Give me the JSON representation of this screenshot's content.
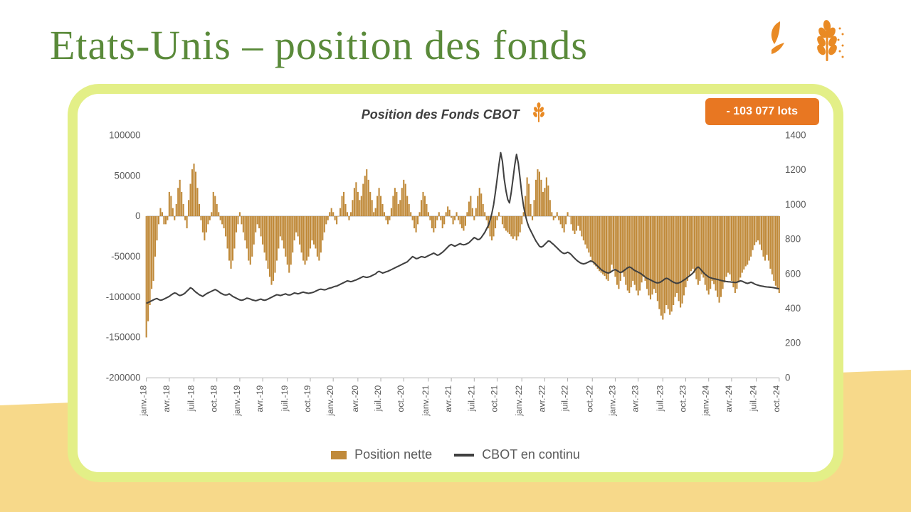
{
  "page": {
    "title": "Etats-Unis – position des fonds",
    "title_color": "#5a8a3a",
    "title_font": "Brush Script MT",
    "title_fontsize": 58,
    "bg_stripe_color": "#f7d98a",
    "card_border_color": "#e3ef87",
    "card_border_radius": 44,
    "card_border_width": 14,
    "icon_color": "#e98a24"
  },
  "chart": {
    "title": "Position des Fonds CBOT",
    "title_fontsize": 18,
    "title_color": "#404040",
    "title_italic": true,
    "title_weight": "bold",
    "badge": {
      "text": "- 103 077 lots",
      "bg": "#e87722",
      "fg": "#ffffff",
      "fontsize": 16,
      "radius": 6
    },
    "background_color": "#ffffff",
    "bar_color": "#c08a3a",
    "line_color": "#404040",
    "line_width": 2,
    "axis": {
      "left": {
        "min": -200000,
        "max": 100000,
        "step": 50000,
        "fontsize": 13,
        "color": "#5a5a5a"
      },
      "right": {
        "min": 0,
        "max": 1400,
        "step": 200,
        "fontsize": 13,
        "color": "#5a5a5a"
      },
      "x_labels": [
        "janv.-18",
        "avr.-18",
        "juil.-18",
        "oct.-18",
        "janv.-19",
        "avr.-19",
        "juil.-19",
        "oct.-19",
        "janv.-20",
        "avr.-20",
        "juil.-20",
        "oct.-20",
        "janv.-21",
        "avr.-21",
        "juil.-21",
        "oct.-21",
        "janv.-22",
        "avr.-22",
        "juil.-22",
        "oct.-22",
        "janv.-23",
        "avr.-23",
        "juil.-23",
        "oct.-23",
        "janv.-24",
        "avr.-24",
        "juil.-24",
        "oct.-24"
      ],
      "x_label_fontsize": 12,
      "x_label_color": "#5a5a5a",
      "x_label_rotate": -90
    },
    "legend": {
      "items": [
        {
          "label": "Position nette",
          "type": "bar",
          "color": "#c08a3a"
        },
        {
          "label": "CBOT en continu",
          "type": "line",
          "color": "#404040"
        }
      ],
      "fontsize": 18,
      "color": "#5a5a5a"
    },
    "data": {
      "n_points": 360,
      "position_nette": [
        -150000,
        -130000,
        -110000,
        -90000,
        -80000,
        -50000,
        -30000,
        -10000,
        10000,
        5000,
        -10000,
        -10000,
        -5000,
        30000,
        25000,
        10000,
        -5000,
        15000,
        35000,
        45000,
        30000,
        15000,
        -5000,
        -15000,
        20000,
        40000,
        58000,
        65000,
        55000,
        35000,
        15000,
        -5000,
        -20000,
        -30000,
        -20000,
        -10000,
        -5000,
        5000,
        30000,
        25000,
        15000,
        5000,
        -5000,
        -10000,
        -15000,
        -25000,
        -40000,
        -55000,
        -65000,
        -55000,
        -40000,
        -20000,
        -10000,
        5000,
        -10000,
        -20000,
        -30000,
        -40000,
        -55000,
        -60000,
        -50000,
        -35000,
        -20000,
        -10000,
        -15000,
        -25000,
        -35000,
        -45000,
        -55000,
        -65000,
        -75000,
        -85000,
        -80000,
        -70000,
        -55000,
        -40000,
        -25000,
        -30000,
        -40000,
        -50000,
        -60000,
        -70000,
        -60000,
        -45000,
        -30000,
        -20000,
        -25000,
        -35000,
        -45000,
        -55000,
        -60000,
        -55000,
        -50000,
        -40000,
        -30000,
        -35000,
        -40000,
        -50000,
        -55000,
        -45000,
        -30000,
        -20000,
        -10000,
        -5000,
        5000,
        10000,
        5000,
        -5000,
        -10000,
        0,
        10000,
        25000,
        30000,
        15000,
        5000,
        -5000,
        5000,
        20000,
        35000,
        42000,
        30000,
        20000,
        25000,
        40000,
        50000,
        58000,
        45000,
        30000,
        20000,
        5000,
        10000,
        25000,
        35000,
        25000,
        15000,
        5000,
        -5000,
        -10000,
        -5000,
        10000,
        25000,
        35000,
        30000,
        15000,
        20000,
        35000,
        45000,
        40000,
        25000,
        15000,
        5000,
        -5000,
        -15000,
        -20000,
        -10000,
        5000,
        20000,
        30000,
        25000,
        15000,
        5000,
        -5000,
        -15000,
        -20000,
        -15000,
        -5000,
        5000,
        -5000,
        -15000,
        -10000,
        5000,
        12000,
        8000,
        -2000,
        -10000,
        -5000,
        5000,
        -5000,
        -10000,
        -15000,
        -18000,
        -12000,
        5000,
        18000,
        25000,
        10000,
        -5000,
        10000,
        25000,
        35000,
        28000,
        15000,
        5000,
        -5000,
        -15000,
        -25000,
        -30000,
        -25000,
        -15000,
        -5000,
        5000,
        0,
        -10000,
        -15000,
        -18000,
        -20000,
        -22000,
        -25000,
        -28000,
        -25000,
        -30000,
        -25000,
        -20000,
        -10000,
        5000,
        25000,
        48000,
        40000,
        15000,
        -5000,
        20000,
        45000,
        58000,
        55000,
        45000,
        30000,
        35000,
        48000,
        38000,
        20000,
        5000,
        -5000,
        -2000,
        5000,
        -5000,
        -10000,
        -15000,
        -20000,
        -10000,
        5000,
        0,
        -10000,
        -18000,
        -22000,
        -18000,
        -12000,
        -18000,
        -25000,
        -30000,
        -35000,
        -40000,
        -45000,
        -50000,
        -55000,
        -60000,
        -62000,
        -65000,
        -68000,
        -70000,
        -72000,
        -74000,
        -78000,
        -80000,
        -70000,
        -60000,
        -65000,
        -75000,
        -85000,
        -90000,
        -80000,
        -70000,
        -75000,
        -85000,
        -92000,
        -95000,
        -88000,
        -80000,
        -85000,
        -92000,
        -98000,
        -92000,
        -82000,
        -75000,
        -80000,
        -90000,
        -98000,
        -103000,
        -97000,
        -90000,
        -95000,
        -105000,
        -115000,
        -123000,
        -128000,
        -120000,
        -110000,
        -115000,
        -122000,
        -118000,
        -110000,
        -100000,
        -95000,
        -105000,
        -113000,
        -108000,
        -98000,
        -88000,
        -80000,
        -73000,
        -68000,
        -65000,
        -70000,
        -78000,
        -85000,
        -80000,
        -72000,
        -76000,
        -85000,
        -92000,
        -97000,
        -90000,
        -80000,
        -84000,
        -92000,
        -100000,
        -107000,
        -100000,
        -90000,
        -82000,
        -75000,
        -70000,
        -72000,
        -80000,
        -88000,
        -95000,
        -90000,
        -82000,
        -76000,
        -70000,
        -66000,
        -62000,
        -60000,
        -55000,
        -50000,
        -42000,
        -36000,
        -32000,
        -30000,
        -35000,
        -42000,
        -50000,
        -55000,
        -48000,
        -55000,
        -65000,
        -72000,
        -80000,
        -86000,
        -90000,
        -95000,
        -98000,
        -100000,
        -101000,
        -102000,
        -103000,
        -103000,
        -103077
      ],
      "cbot": [
        430,
        435,
        440,
        445,
        450,
        455,
        458,
        452,
        448,
        450,
        455,
        460,
        465,
        470,
        478,
        485,
        490,
        488,
        480,
        475,
        478,
        483,
        490,
        500,
        510,
        520,
        515,
        505,
        495,
        488,
        480,
        475,
        470,
        478,
        485,
        490,
        495,
        500,
        505,
        510,
        505,
        498,
        490,
        485,
        480,
        478,
        480,
        485,
        478,
        470,
        465,
        460,
        455,
        450,
        448,
        450,
        455,
        460,
        458,
        455,
        450,
        448,
        445,
        448,
        452,
        455,
        450,
        448,
        450,
        455,
        460,
        465,
        470,
        475,
        480,
        478,
        475,
        478,
        482,
        485,
        480,
        478,
        480,
        485,
        490,
        488,
        485,
        488,
        492,
        495,
        492,
        490,
        488,
        490,
        492,
        495,
        500,
        505,
        510,
        512,
        510,
        508,
        510,
        515,
        518,
        520,
        525,
        528,
        530,
        535,
        540,
        545,
        550,
        555,
        560,
        558,
        555,
        558,
        562,
        565,
        570,
        575,
        580,
        585,
        582,
        580,
        582,
        585,
        590,
        595,
        600,
        610,
        615,
        610,
        605,
        608,
        612,
        615,
        620,
        625,
        630,
        635,
        640,
        645,
        650,
        655,
        660,
        665,
        670,
        680,
        690,
        700,
        695,
        688,
        690,
        695,
        700,
        698,
        695,
        700,
        705,
        710,
        715,
        720,
        715,
        708,
        710,
        718,
        725,
        735,
        745,
        755,
        765,
        770,
        765,
        760,
        765,
        770,
        775,
        770,
        768,
        770,
        775,
        780,
        790,
        800,
        810,
        805,
        798,
        800,
        810,
        825,
        840,
        860,
        880,
        910,
        950,
        1000,
        1070,
        1150,
        1230,
        1300,
        1250,
        1150,
        1080,
        1030,
        1010,
        1070,
        1150,
        1230,
        1290,
        1240,
        1150,
        1060,
        990,
        940,
        900,
        870,
        850,
        830,
        810,
        790,
        775,
        760,
        755,
        760,
        770,
        780,
        790,
        788,
        778,
        770,
        760,
        750,
        740,
        730,
        722,
        718,
        720,
        725,
        720,
        712,
        700,
        690,
        680,
        672,
        665,
        660,
        658,
        660,
        665,
        670,
        675,
        672,
        665,
        655,
        645,
        635,
        625,
        618,
        612,
        608,
        605,
        608,
        615,
        622,
        625,
        620,
        612,
        608,
        612,
        620,
        628,
        635,
        640,
        636,
        628,
        620,
        615,
        610,
        605,
        598,
        590,
        582,
        575,
        570,
        565,
        560,
        555,
        550,
        548,
        550,
        555,
        562,
        570,
        575,
        572,
        565,
        558,
        552,
        548,
        545,
        548,
        552,
        558,
        565,
        572,
        580,
        588,
        595,
        605,
        618,
        632,
        640,
        632,
        620,
        608,
        598,
        590,
        582,
        578,
        575,
        572,
        570,
        568,
        565,
        562,
        560,
        558,
        556,
        555,
        554,
        553,
        552,
        550,
        552,
        556,
        560,
        558,
        553,
        548,
        545,
        548,
        552,
        548,
        542,
        538,
        535,
        532,
        530,
        528,
        526,
        525,
        524,
        523,
        522,
        520,
        518,
        516,
        514,
        512,
        511,
        510,
        510,
        510,
        510,
        510
      ]
    }
  }
}
